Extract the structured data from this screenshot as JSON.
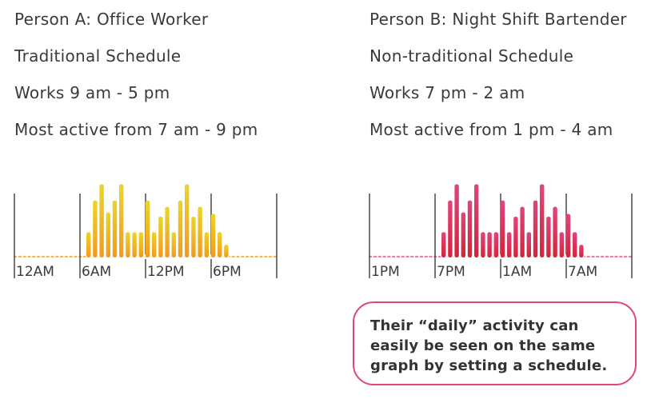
{
  "person_a": {
    "title": "Person A: Office Worker",
    "schedule": "Traditional Schedule",
    "works": "Works 9 am - 5 pm",
    "active": "Most active from 7 am - 9 pm"
  },
  "person_b": {
    "title": "Person B: Night Shift Bartender",
    "schedule": "Non-traditional Schedule",
    "works": "Works 7 pm - 2 am",
    "active": "Most active from 1 pm - 4 am"
  },
  "callout": {
    "line1": "Their “daily” activity can",
    "line2": "easily be seen on the same",
    "line3": "graph by setting a schedule."
  },
  "chart_data": [
    {
      "type": "bar",
      "tick_labels": [
        "12AM",
        "6AM",
        "12PM",
        "6PM"
      ],
      "values": [
        0.36,
        0.81,
        1.04,
        0.64,
        0.81,
        1.04,
        0.36,
        0.36,
        0.36,
        0.81,
        0.36,
        0.58,
        0.72,
        0.36,
        0.81,
        1.04,
        0.58,
        0.72,
        0.36,
        0.62,
        0.36,
        0.18
      ],
      "colors": {
        "top": "#ead62a",
        "bottom": "#f39a1e",
        "dots": "#f5b84a"
      }
    },
    {
      "type": "bar",
      "tick_labels": [
        "1PM",
        "7PM",
        "1AM",
        "7AM"
      ],
      "values": [
        0.36,
        0.81,
        1.04,
        0.64,
        0.81,
        1.04,
        0.36,
        0.36,
        0.36,
        0.81,
        0.36,
        0.58,
        0.72,
        0.36,
        0.81,
        1.04,
        0.58,
        0.72,
        0.36,
        0.62,
        0.36,
        0.18
      ],
      "colors": {
        "top": "#e0457b",
        "bottom": "#d4243b",
        "dots": "#ef7aa6"
      }
    }
  ]
}
